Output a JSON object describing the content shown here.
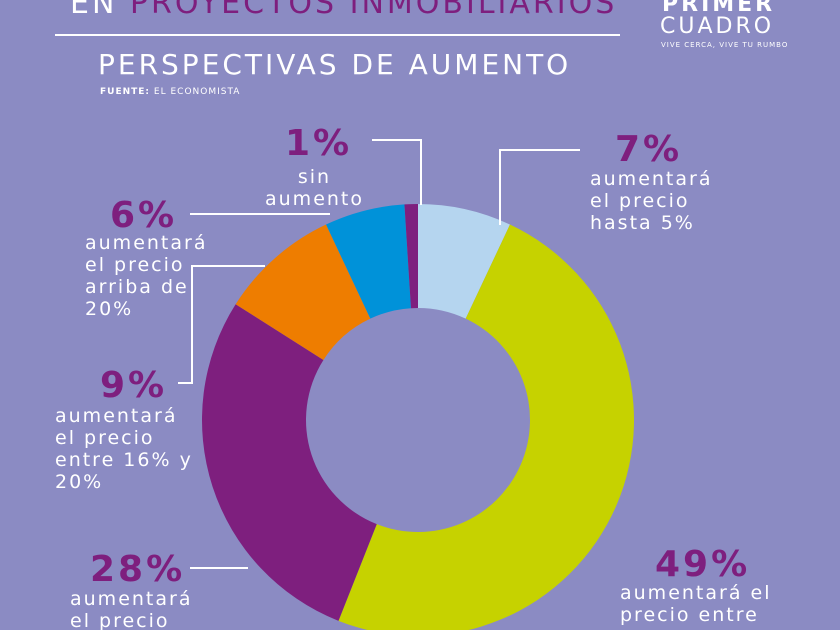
{
  "chart_data": {
    "type": "pie",
    "title_lead": "EN",
    "title": "PROYECTOS INMOBILIARIOS",
    "subtitle": "PERSPECTIVAS DE AUMENTO",
    "source_label": "FUENTE:",
    "source": "EL ECONOMISTA",
    "categories": [
      "aumentará el precio hasta 5%",
      "aumentará el precio entre",
      "aumentará el precio",
      "aumentará el precio entre 16% y 20%",
      "aumentará el precio arriba de 20%",
      "sin aumento"
    ],
    "values": [
      7,
      49,
      28,
      9,
      6,
      1
    ],
    "value_labels": [
      "7%",
      "49%",
      "28%",
      "9%",
      "6%",
      "1%"
    ],
    "colors": [
      "#b5d5ef",
      "#c6d200",
      "#7e1f7e",
      "#ee7d00",
      "#0092d9",
      "#7e1f7e"
    ],
    "hole": true
  },
  "logo": {
    "name_top": "PRIMER",
    "name_bottom": "CUADRO",
    "tagline": "VIVE CERCA, VIVE TU RUMBO"
  }
}
